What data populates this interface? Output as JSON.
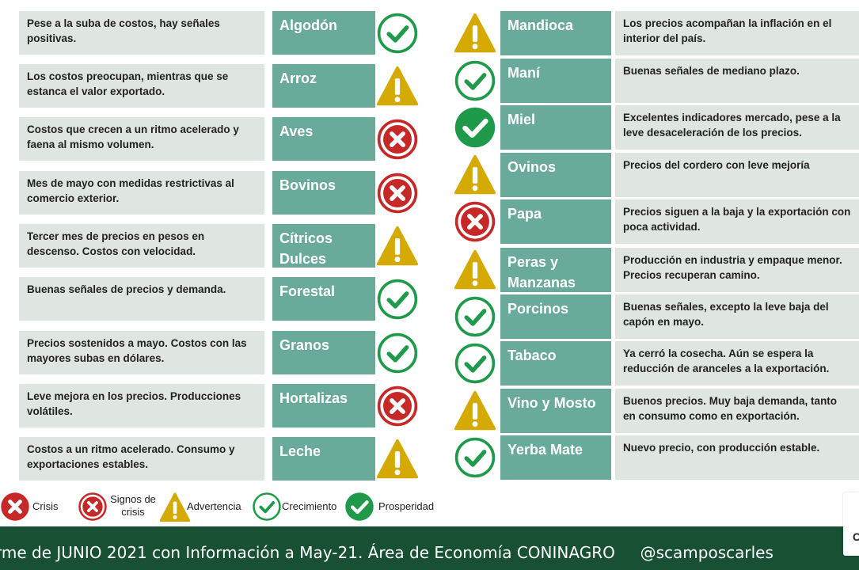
{
  "colors": {
    "row_bg": "#dfe6e1",
    "name_bg": "#6aaa9a",
    "crisis": "#c62828",
    "warning": "#d4aa00",
    "growth": "#1f9a4a",
    "footer_bg": "#175033"
  },
  "left_rows": [
    {
      "desc": "Pese a la suba de costos, hay señales positivas.",
      "name": "Algodón",
      "status": "crecimiento"
    },
    {
      "desc": "Los costos preocupan, mientras que se estanca el valor exportado.",
      "name": "Arroz",
      "status": "advertencia"
    },
    {
      "desc": "Costos que crecen a un ritmo acelerado y faena al mismo volumen.",
      "name": "Aves",
      "status": "signos_de_crisis"
    },
    {
      "desc": "Mes de mayo con medidas restrictivas al comercio exterior.",
      "name": "Bovinos",
      "status": "signos_de_crisis"
    },
    {
      "desc": "Tercer mes de precios en pesos en descenso. Costos con velocidad.",
      "name": "Cítricos Dulces",
      "status": "advertencia"
    },
    {
      "desc": "Buenas señales de precios y demanda.",
      "name": "Forestal",
      "status": "crecimiento"
    },
    {
      "desc": "Precios sostenidos a mayo. Costos con las mayores subas en dólares.",
      "name": "Granos",
      "status": "crecimiento"
    },
    {
      "desc": "Leve mejora en los precios. Producciones volátiles.",
      "name": "Hortalizas",
      "status": "signos_de_crisis"
    },
    {
      "desc": "Costos a un ritmo acelerado. Consumo y exportaciones estables.",
      "name": "Leche",
      "status": "advertencia"
    }
  ],
  "right_rows": [
    {
      "name": "Mandioca",
      "desc": "Los precios acompañan la inflación en el interior del país.",
      "status": "advertencia"
    },
    {
      "name": "Maní",
      "desc": "Buenas señales de mediano plazo.",
      "status": "crecimiento"
    },
    {
      "name": "Miel",
      "desc": "Excelentes indicadores mercado, pese a la leve desaceleración de los precios.",
      "status": "prosperidad"
    },
    {
      "name": "Ovinos",
      "desc": "Precios del cordero con leve mejoría",
      "status": "advertencia"
    },
    {
      "name": "Papa",
      "desc": "Precios siguen a la baja y la exportación con poca actividad.",
      "status": "signos_de_crisis"
    },
    {
      "name": "Peras y Manzanas",
      "desc": "Producción en industria y empaque menor. Precios recuperan camino.",
      "status": "advertencia"
    },
    {
      "name": "Porcinos",
      "desc": "Buenas señales, excepto la leve baja del capón en mayo.",
      "status": "crecimiento"
    },
    {
      "name": "Tabaco",
      "desc": "Ya cerró la cosecha. Aún se espera la reducción de aranceles a la exportación.",
      "status": "crecimiento"
    },
    {
      "name": "Vino y Mosto",
      "desc": "Buenos precios. Muy baja demanda, tanto en consumo como en exportación.",
      "status": "advertencia"
    },
    {
      "name": "Yerba Mate",
      "desc": "Nuevo precio, con producción estable.",
      "status": "crecimiento"
    }
  ],
  "legend": [
    {
      "key": "crisis",
      "label": "Crisis",
      "icon": "crisis-icon"
    },
    {
      "key": "signos_de_crisis",
      "label": "Signos de crisis",
      "icon": "crisis-signs-icon"
    },
    {
      "key": "advertencia",
      "label": "Advertencia",
      "icon": "warning-icon"
    },
    {
      "key": "crecimiento",
      "label": "Crecimiento",
      "icon": "growth-check-icon"
    },
    {
      "key": "prosperidad",
      "label": "Prosperidad",
      "icon": "prosperity-check-icon"
    }
  ],
  "footer": {
    "text": "rme de JUNIO 2021 con Información a May-21. Área de Economía CONINAGRO     @scamposcarles"
  },
  "logo": {
    "letter": "C"
  }
}
